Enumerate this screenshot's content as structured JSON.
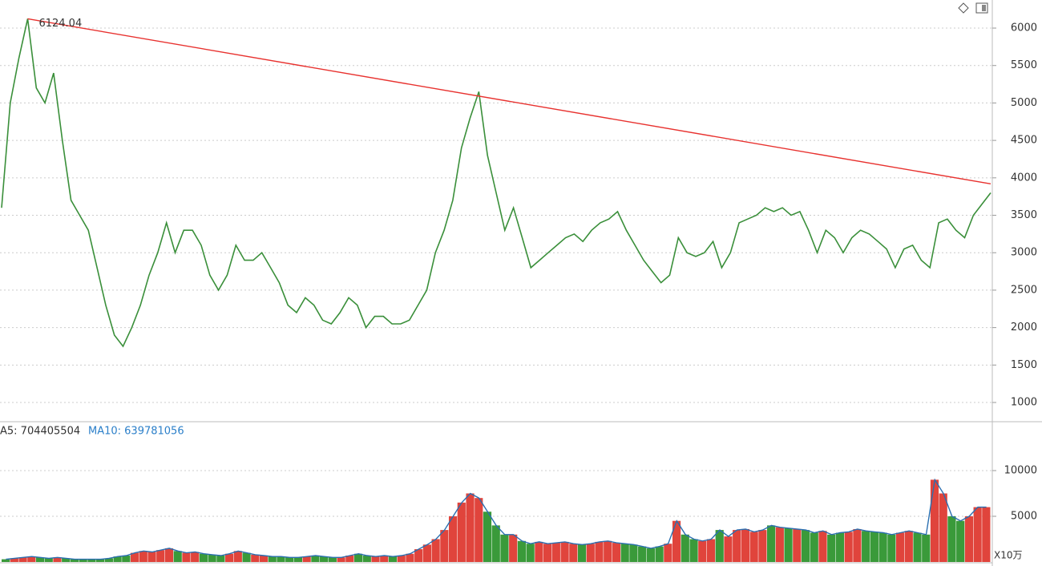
{
  "chart_data": [
    {
      "type": "line",
      "series": [
        {
          "color": "#3a8f3a",
          "values": [
            3600,
            5000,
            5600,
            6124.04,
            5200,
            5000,
            5400,
            4500,
            3700,
            3500,
            3300,
            2800,
            2300,
            1900,
            1750,
            2000,
            2300,
            2700,
            3000,
            3400,
            3000,
            3300,
            3300,
            3100,
            2700,
            2500,
            2700,
            3100,
            2900,
            2900,
            3000,
            2800,
            2600,
            2300,
            2200,
            2400,
            2300,
            2100,
            2050,
            2200,
            2400,
            2300,
            2000,
            2150,
            2150,
            2050,
            2050,
            2100,
            2300,
            2500,
            3000,
            3300,
            3700,
            4400,
            4800,
            5150,
            4300,
            3800,
            3300,
            3600,
            3200,
            2800,
            2900,
            3000,
            3100,
            3200,
            3250,
            3150,
            3300,
            3400,
            3450,
            3550,
            3300,
            3100,
            2900,
            2750,
            2600,
            2700,
            3200,
            3000,
            2950,
            3000,
            3150,
            2800,
            3000,
            3400,
            3450,
            3500,
            3600,
            3550,
            3600,
            3500,
            3550,
            3300,
            3000,
            3300,
            3200,
            3000,
            3200,
            3300,
            3250,
            3150,
            3050,
            2800,
            3050,
            3100,
            2900,
            2800,
            3400,
            3450,
            3300,
            3200,
            3500,
            3650,
            3800
          ]
        }
      ],
      "trendline": {
        "color": "#e8322f",
        "values": [
          6124.04,
          3920
        ]
      },
      "ylim": [
        754,
        6375
      ],
      "yticks": [
        1000,
        1500,
        2000,
        2500,
        3000,
        3500,
        4000,
        4500,
        5000,
        5500,
        6000
      ],
      "grid": true
    },
    {
      "type": "bar",
      "ma5_label": "A5: 704405504",
      "ma10_label": "MA10: 639781056",
      "unit": "X10万",
      "series": [
        {
          "color": "#3a9a3a",
          "up_color": "#e0443c",
          "values": [
            300,
            400,
            500,
            600,
            500,
            400,
            500,
            400,
            300,
            300,
            300,
            300,
            400,
            600,
            700,
            1000,
            1200,
            1100,
            1300,
            1500,
            1200,
            1000,
            1100,
            900,
            800,
            700,
            900,
            1200,
            1000,
            800,
            700,
            600,
            600,
            500,
            500,
            600,
            700,
            600,
            500,
            500,
            700,
            900,
            700,
            600,
            700,
            600,
            700,
            900,
            1400,
            1900,
            2500,
            3500,
            5000,
            6500,
            7500,
            7000,
            5500,
            4000,
            3000,
            3000,
            2300,
            2000,
            2200,
            2000,
            2100,
            2200,
            2000,
            1900,
            2000,
            2200,
            2300,
            2100,
            2000,
            1900,
            1700,
            1500,
            1700,
            2000,
            4500,
            3000,
            2500,
            2300,
            2500,
            3500,
            2800,
            3500,
            3600,
            3300,
            3500,
            4000,
            3800,
            3700,
            3600,
            3500,
            3200,
            3400,
            3000,
            3200,
            3300,
            3600,
            3400,
            3300,
            3200,
            3000,
            3200,
            3400,
            3200,
            3000,
            9000,
            7500,
            5000,
            4500,
            5000,
            6000,
            6000
          ]
        }
      ],
      "ylim": [
        0,
        15260
      ],
      "yticks": [
        5000,
        10000
      ],
      "grid": true
    }
  ]
}
